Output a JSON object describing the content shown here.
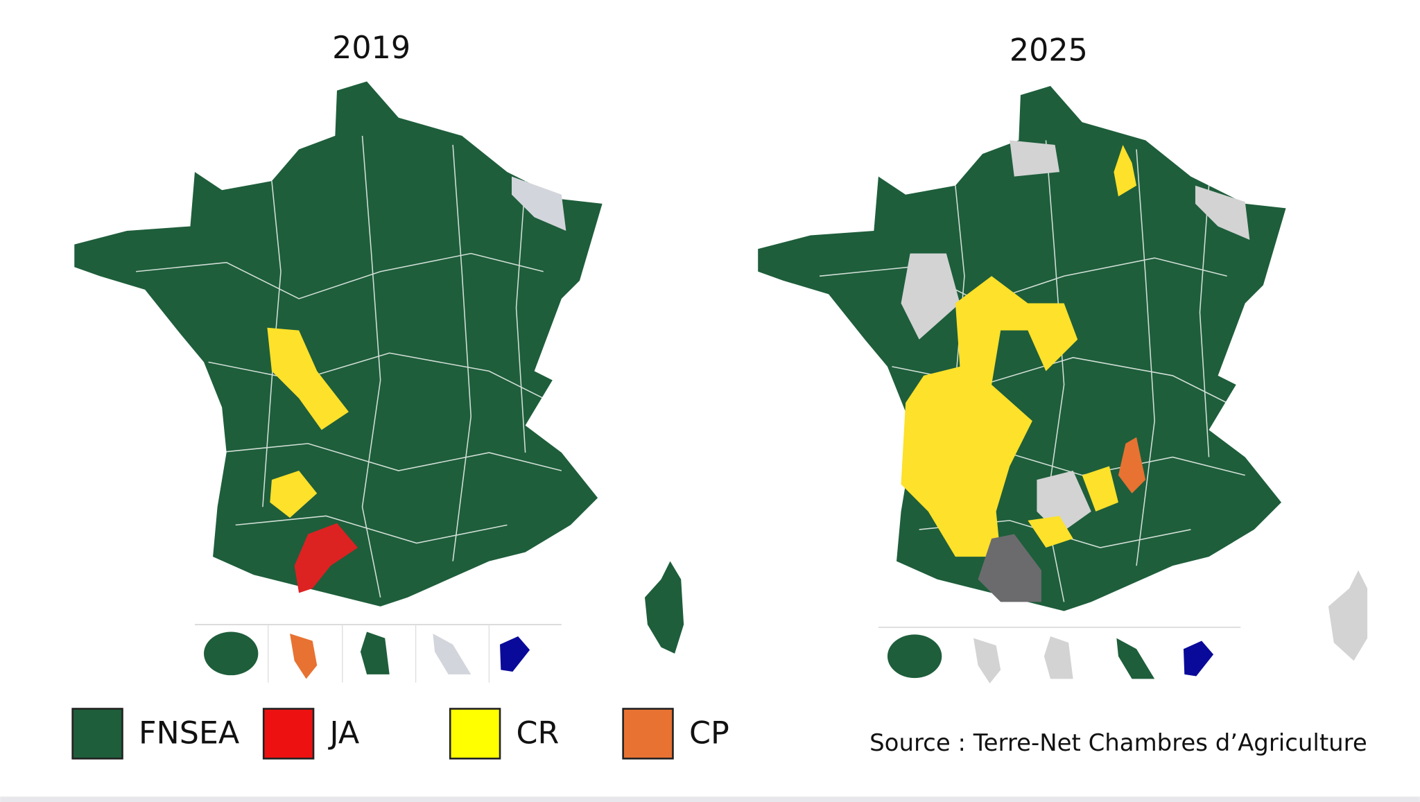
{
  "maps": [
    {
      "title": "2019"
    },
    {
      "title": "2025"
    }
  ],
  "legend": [
    {
      "label": "FNSEA",
      "color": "#1e5e3b"
    },
    {
      "label": "JA",
      "color": "#ee1111"
    },
    {
      "label": "CR",
      "color": "#ffff00"
    },
    {
      "label": "CP",
      "color": "#e87232"
    }
  ],
  "source": "Source : Terre-Net Chambres d’Agriculture"
}
